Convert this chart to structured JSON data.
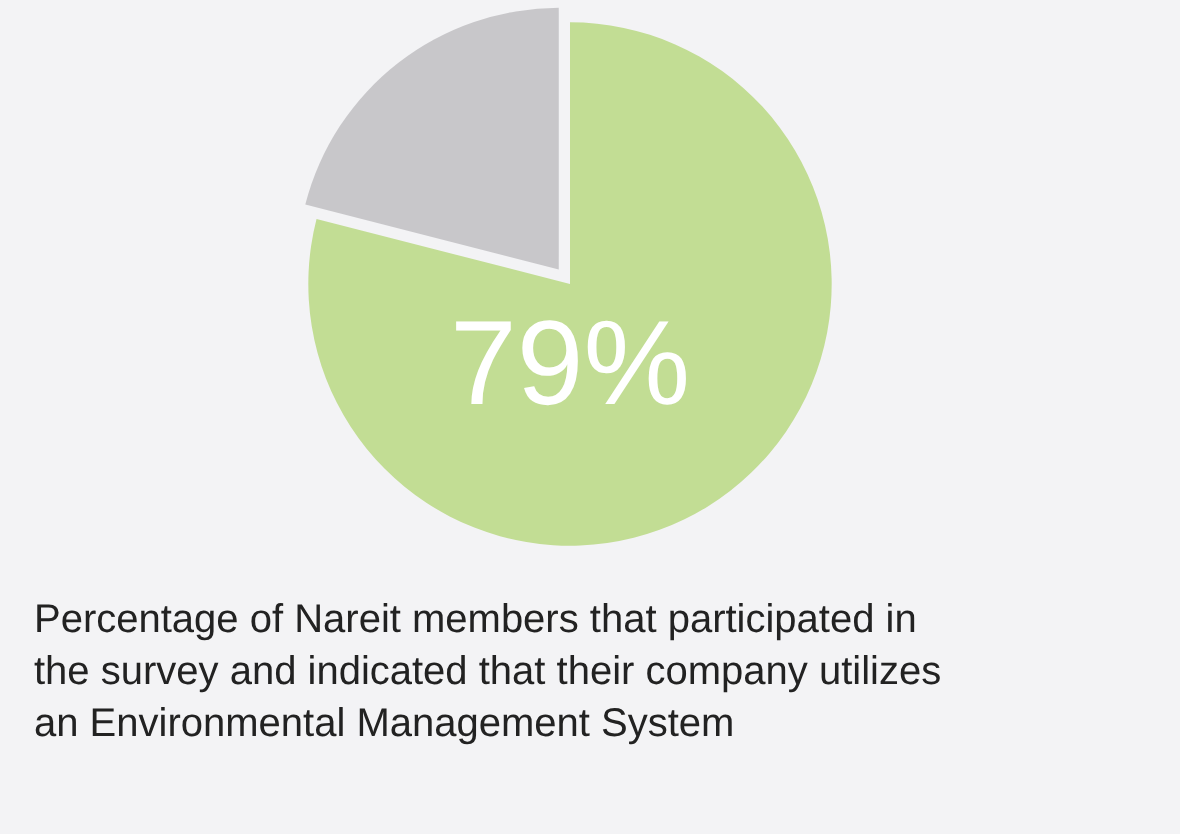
{
  "chart_data": {
    "type": "pie",
    "title": "Percentage of Nareit members that participated in the survey and indicated that their company utilizes an Environmental Management System",
    "categories": [
      null,
      null
    ],
    "values": [
      79,
      21
    ],
    "colors": [
      "#c2dd94",
      "#c8c7ca"
    ],
    "value_labels": [
      "79%",
      null
    ],
    "legend": false
  }
}
